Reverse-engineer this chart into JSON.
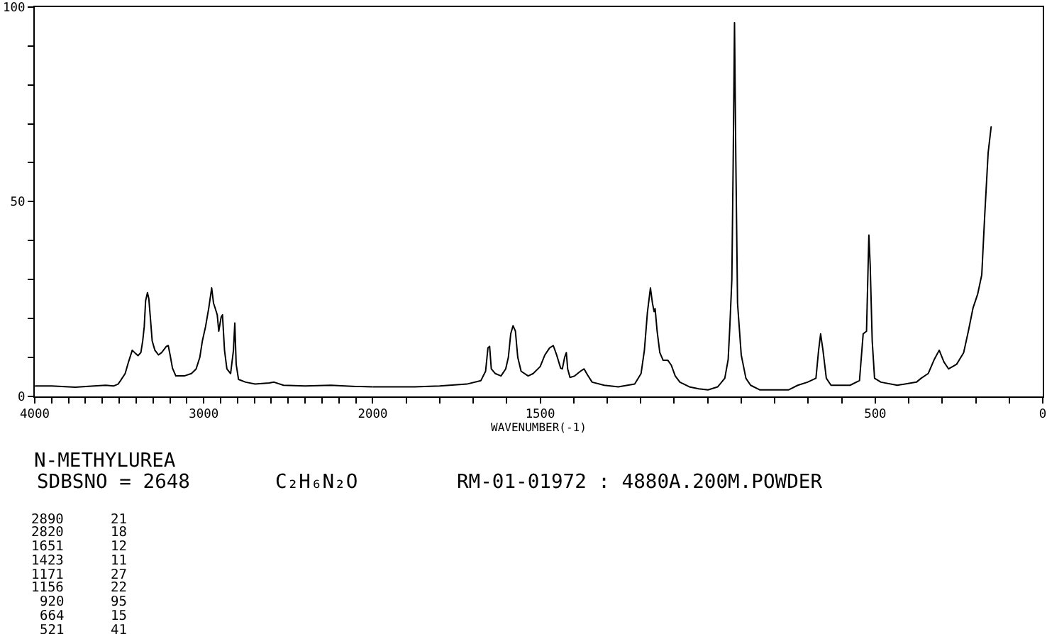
{
  "chart_data": [
    {
      "type": "line",
      "title": "N-METHYLUREA",
      "annotations": [
        "SDBSNO = 2648",
        "C₂H₆N₂O",
        "RM-01-01972 : 4880A.200M.POWDER",
        "2890",
        "21",
        "2820",
        "18",
        "1651",
        "12",
        "1423",
        "11",
        "1171",
        "27",
        "1156",
        "22",
        "920",
        "95",
        "664",
        "15",
        "521",
        "41"
      ],
      "x": [
        3996,
        3900,
        3760,
        3650,
        3580,
        3534,
        3507,
        3492,
        3465,
        3445,
        3423,
        3409,
        3389,
        3372,
        3361,
        3352,
        3344,
        3333,
        3325,
        3316,
        3305,
        3289,
        3268,
        3249,
        3221,
        3210,
        3199,
        3185,
        3165,
        3115,
        3073,
        3045,
        3023,
        3008,
        2989,
        2970,
        2953,
        2942,
        2933,
        2920,
        2911,
        2897,
        2889,
        2877,
        2863,
        2841,
        2824,
        2816,
        2808,
        2794,
        2752,
        2696,
        2612,
        2584,
        2528,
        2400,
        2248,
        2100,
        2000
      ],
      "series": [
        {
          "color": "#000000",
          "values": [
            2.6,
            2.6,
            2.3,
            2.6,
            2.8,
            2.6,
            3.1,
            4.0,
            5.8,
            8.8,
            11.8,
            11.2,
            10.4,
            11.2,
            14.2,
            17.9,
            24.5,
            26.6,
            25.1,
            20.3,
            14.2,
            11.8,
            10.6,
            11.2,
            12.8,
            13.0,
            10.6,
            7.2,
            5.2,
            5.2,
            5.8,
            7.0,
            10.0,
            14.2,
            17.9,
            22.7,
            27.8,
            23.9,
            22.7,
            20.9,
            16.7,
            20.3,
            20.9,
            11.8,
            7.0,
            5.8,
            11.8,
            18.8,
            8.2,
            4.3,
            3.6,
            3.1,
            3.4,
            3.6,
            2.8,
            2.6,
            2.8,
            2.5,
            2.4
          ]
        }
      ],
      "xlim": [
        4000,
        2000
      ],
      "xticks": [
        4000,
        {
          "value": 3900,
          "label": null
        },
        {
          "value": 3800,
          "label": null
        },
        {
          "value": 3700,
          "label": null
        },
        {
          "value": 3600,
          "label": null
        },
        {
          "value": 3500,
          "label": null
        },
        {
          "value": 3400,
          "label": null
        },
        {
          "value": 3300,
          "label": null
        },
        {
          "value": 3200,
          "label": null
        },
        {
          "value": 3100,
          "label": null
        },
        3000,
        {
          "value": 2900,
          "label": null
        },
        {
          "value": 2800,
          "label": null
        },
        {
          "value": 2700,
          "label": null
        },
        {
          "value": 2600,
          "label": null
        },
        {
          "value": 2500,
          "label": null
        },
        {
          "value": 2400,
          "label": null
        },
        {
          "value": 2300,
          "label": null
        },
        {
          "value": 2200,
          "label": null
        },
        {
          "value": 2100,
          "label": null
        },
        2000
      ],
      "ylim": [
        0,
        100
      ],
      "yticks": [
        0,
        {
          "value": 10,
          "label": null
        },
        {
          "value": 20,
          "label": null
        },
        {
          "value": 30,
          "label": null
        },
        {
          "value": 40,
          "label": null
        },
        50,
        {
          "value": 60,
          "label": null
        },
        {
          "value": 70,
          "label": null
        },
        {
          "value": 80,
          "label": null
        },
        {
          "value": 90,
          "label": null
        },
        100
      ]
    },
    {
      "type": "line",
      "xlabel": "WAVENUMBER(-1)",
      "x": [
        2000,
        1875,
        1800,
        1719,
        1677,
        1663,
        1656,
        1651,
        1646,
        1634,
        1617,
        1603,
        1595,
        1588,
        1581,
        1574,
        1567,
        1557,
        1536,
        1521,
        1500,
        1486,
        1472,
        1461,
        1451,
        1439,
        1434,
        1427,
        1422,
        1418,
        1411,
        1397,
        1380,
        1369,
        1359,
        1345,
        1309,
        1267,
        1218,
        1199,
        1189,
        1180,
        1171,
        1165,
        1160,
        1157,
        1151,
        1143,
        1133,
        1119,
        1109,
        1097,
        1083,
        1055,
        1027,
        999,
        970,
        949,
        939,
        934,
        928,
        924,
        920,
        916,
        911,
        900,
        886,
        872,
        844,
        759,
        731,
        702,
        677,
        669,
        663,
        656,
        646,
        632,
        575,
        547,
        536,
        526,
        519,
        515,
        509,
        502,
        483,
        434,
        377,
        363,
        342,
        324,
        309,
        295,
        281,
        257,
        236,
        222,
        208,
        194,
        182,
        173,
        163,
        154
      ],
      "series": [
        {
          "color": "#000000",
          "values": [
            2.4,
            2.4,
            2.6,
            3.1,
            4.0,
            6.4,
            12.4,
            12.8,
            7.0,
            5.8,
            5.2,
            7.0,
            10.0,
            16.0,
            18.1,
            16.7,
            10.0,
            6.4,
            5.2,
            5.8,
            7.6,
            10.6,
            12.4,
            13.0,
            10.6,
            7.2,
            7.0,
            10.0,
            11.2,
            7.0,
            4.8,
            5.2,
            6.4,
            7.0,
            5.5,
            3.6,
            2.8,
            2.4,
            3.1,
            5.8,
            11.8,
            21.5,
            27.8,
            23.9,
            21.7,
            22.5,
            16.7,
            11.2,
            9.2,
            9.2,
            8.0,
            5.2,
            3.6,
            2.4,
            1.9,
            1.6,
            2.4,
            4.6,
            9.4,
            17.9,
            29.9,
            60.1,
            96.0,
            60.1,
            23.9,
            10.6,
            4.6,
            2.8,
            1.6,
            1.6,
            2.8,
            3.6,
            4.6,
            11.8,
            16.0,
            11.8,
            4.6,
            2.8,
            2.8,
            4.0,
            16.0,
            16.7,
            41.4,
            33.6,
            14.2,
            4.6,
            3.6,
            2.8,
            3.6,
            4.6,
            5.8,
            9.4,
            11.8,
            8.8,
            7.0,
            8.2,
            11.2,
            16.7,
            22.7,
            26.3,
            31.2,
            46.8,
            62.5,
            69.2
          ]
        }
      ],
      "xlim": [
        2000,
        0
      ],
      "xticks": [
        {
          "value": 1900,
          "label": null
        },
        {
          "value": 1800,
          "label": null
        },
        {
          "value": 1700,
          "label": null
        },
        {
          "value": 1600,
          "label": null
        },
        1500,
        {
          "value": 1400,
          "label": null
        },
        {
          "value": 1300,
          "label": null
        },
        {
          "value": 1200,
          "label": null
        },
        {
          "value": 1100,
          "label": null
        },
        {
          "value": 1000,
          "label": null
        },
        {
          "value": 900,
          "label": null
        },
        {
          "value": 800,
          "label": null
        },
        {
          "value": 700,
          "label": null
        },
        {
          "value": 600,
          "label": null
        },
        500,
        {
          "value": 400,
          "label": null
        },
        {
          "value": 300,
          "label": null
        },
        {
          "value": 200,
          "label": null
        },
        {
          "value": 100,
          "label": null
        },
        0
      ],
      "ylim": [
        0,
        100
      ],
      "tick_labels": "x"
    }
  ]
}
